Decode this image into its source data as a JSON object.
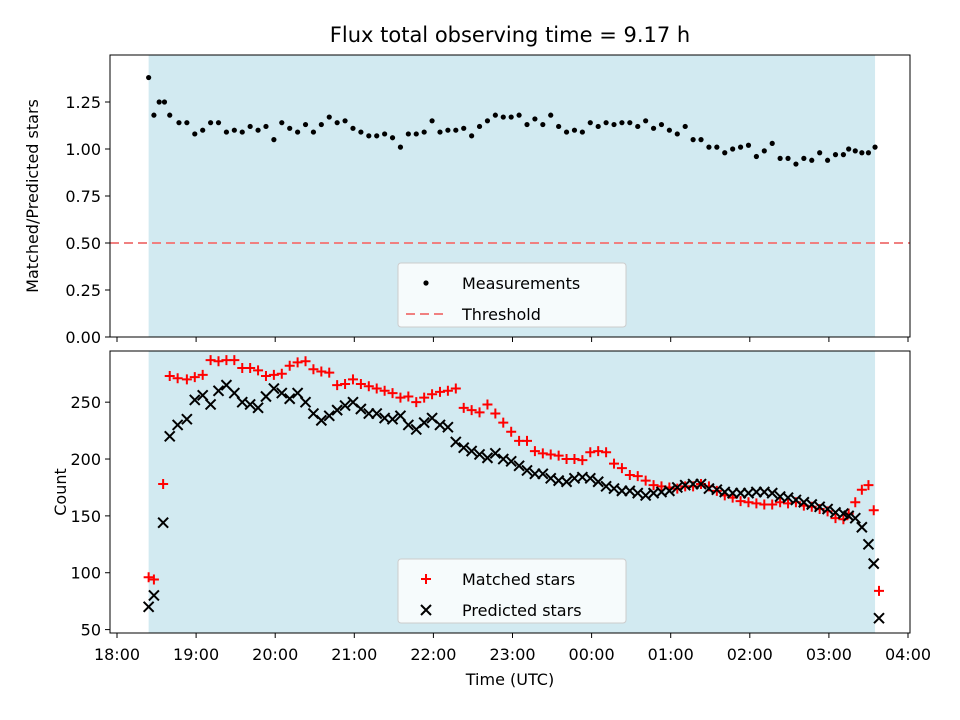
{
  "title": "Flux total observing time = 9.17 h",
  "colors": {
    "span": "#add8e6",
    "measurement": "#000000",
    "threshold": "#f08080",
    "matched": "#ff0000",
    "predicted": "#000000"
  },
  "chart_data": [
    {
      "type": "scatter",
      "panel": "top",
      "ylabel": "Matched/Predicted stars",
      "xlabel": "",
      "ylim": [
        0,
        1.5
      ],
      "yticks": [
        0.0,
        0.25,
        0.5,
        0.75,
        1.0,
        1.25
      ],
      "ytick_labels": [
        "0.00",
        "0.25",
        "0.50",
        "0.75",
        "1.00",
        "1.25"
      ],
      "shaded_span": [
        "18:24",
        "03:35"
      ],
      "legend_position": "lower center",
      "series": [
        {
          "name": "Measurements",
          "marker": "dot",
          "x": [
            "18:24",
            "18:28",
            "18:32",
            "18:36",
            "18:40",
            "18:47",
            "18:53",
            "18:59",
            "19:05",
            "19:11",
            "19:17",
            "19:23",
            "19:29",
            "19:35",
            "19:41",
            "19:47",
            "19:53",
            "19:59",
            "20:05",
            "20:11",
            "20:17",
            "20:23",
            "20:29",
            "20:35",
            "20:41",
            "20:47",
            "20:53",
            "20:59",
            "21:05",
            "21:11",
            "21:17",
            "21:23",
            "21:29",
            "21:35",
            "21:41",
            "21:47",
            "21:53",
            "21:59",
            "22:05",
            "22:11",
            "22:17",
            "22:23",
            "22:29",
            "22:35",
            "22:41",
            "22:47",
            "22:53",
            "22:59",
            "23:05",
            "23:11",
            "23:17",
            "23:23",
            "23:29",
            "23:35",
            "23:41",
            "23:47",
            "23:53",
            "23:59",
            "00:05",
            "00:11",
            "00:17",
            "00:23",
            "00:29",
            "00:35",
            "00:41",
            "00:47",
            "00:53",
            "00:59",
            "01:05",
            "01:11",
            "01:17",
            "01:23",
            "01:29",
            "01:35",
            "01:41",
            "01:47",
            "01:53",
            "01:59",
            "02:05",
            "02:11",
            "02:17",
            "02:23",
            "02:29",
            "02:35",
            "02:41",
            "02:47",
            "02:53",
            "02:59",
            "03:05",
            "03:11",
            "03:15",
            "03:20",
            "03:25",
            "03:30",
            "03:35"
          ],
          "y": [
            1.38,
            1.18,
            1.25,
            1.25,
            1.18,
            1.14,
            1.14,
            1.08,
            1.1,
            1.14,
            1.14,
            1.09,
            1.1,
            1.09,
            1.12,
            1.1,
            1.12,
            1.05,
            1.14,
            1.11,
            1.09,
            1.13,
            1.09,
            1.13,
            1.17,
            1.14,
            1.15,
            1.11,
            1.09,
            1.07,
            1.07,
            1.08,
            1.06,
            1.01,
            1.08,
            1.08,
            1.09,
            1.15,
            1.09,
            1.1,
            1.1,
            1.11,
            1.07,
            1.12,
            1.15,
            1.18,
            1.17,
            1.17,
            1.18,
            1.13,
            1.16,
            1.13,
            1.18,
            1.12,
            1.09,
            1.1,
            1.09,
            1.14,
            1.12,
            1.14,
            1.13,
            1.14,
            1.14,
            1.12,
            1.15,
            1.11,
            1.13,
            1.1,
            1.08,
            1.12,
            1.05,
            1.05,
            1.01,
            1.01,
            0.98,
            1.0,
            1.01,
            1.02,
            0.96,
            0.99,
            1.03,
            0.95,
            0.95,
            0.92,
            0.95,
            0.94,
            0.98,
            0.94,
            0.97,
            0.97,
            1.0,
            0.99,
            0.98,
            0.98,
            1.01
          ]
        },
        {
          "name": "Threshold",
          "type": "line",
          "style": "dashed",
          "y": 0.5
        }
      ]
    },
    {
      "type": "scatter",
      "panel": "bottom",
      "ylabel": "Count",
      "xlabel": "Time (UTC)",
      "ylim": [
        47,
        295
      ],
      "yticks": [
        50,
        100,
        150,
        200,
        250
      ],
      "xticks": [
        "18:00",
        "19:00",
        "20:00",
        "21:00",
        "22:00",
        "23:00",
        "00:00",
        "01:00",
        "02:00",
        "03:00",
        "04:00"
      ],
      "shaded_span": [
        "18:24",
        "03:35"
      ],
      "legend_position": "lower center",
      "series": [
        {
          "name": "Matched stars",
          "marker": "plus",
          "x": [
            "18:24",
            "18:28",
            "18:35",
            "18:40",
            "18:46",
            "18:53",
            "18:59",
            "19:05",
            "19:11",
            "19:17",
            "19:23",
            "19:29",
            "19:35",
            "19:41",
            "19:47",
            "19:53",
            "19:59",
            "20:05",
            "20:11",
            "20:17",
            "20:23",
            "20:29",
            "20:35",
            "20:41",
            "20:47",
            "20:53",
            "20:59",
            "21:05",
            "21:11",
            "21:17",
            "21:23",
            "21:29",
            "21:35",
            "21:41",
            "21:47",
            "21:53",
            "21:59",
            "22:05",
            "22:11",
            "22:17",
            "22:23",
            "22:29",
            "22:35",
            "22:41",
            "22:47",
            "22:53",
            "22:59",
            "23:05",
            "23:11",
            "23:17",
            "23:23",
            "23:29",
            "23:35",
            "23:41",
            "23:47",
            "23:53",
            "23:59",
            "00:05",
            "00:11",
            "00:17",
            "00:23",
            "00:29",
            "00:35",
            "00:41",
            "00:47",
            "00:53",
            "00:59",
            "01:05",
            "01:11",
            "01:17",
            "01:23",
            "01:29",
            "01:35",
            "01:41",
            "01:47",
            "01:53",
            "01:59",
            "02:05",
            "02:11",
            "02:17",
            "02:23",
            "02:29",
            "02:35",
            "02:41",
            "02:47",
            "02:53",
            "02:59",
            "03:05",
            "03:11",
            "03:15",
            "03:20",
            "03:25",
            "03:30",
            "03:34",
            "03:38"
          ],
          "y": [
            96,
            94,
            178,
            273,
            271,
            270,
            272,
            274,
            287,
            286,
            287,
            287,
            280,
            280,
            278,
            273,
            274,
            275,
            282,
            285,
            286,
            279,
            277,
            276,
            265,
            266,
            270,
            266,
            264,
            262,
            260,
            258,
            254,
            255,
            250,
            254,
            257,
            259,
            260,
            262,
            245,
            243,
            241,
            248,
            240,
            232,
            224,
            216,
            216,
            207,
            205,
            204,
            203,
            200,
            200,
            199,
            206,
            207,
            206,
            196,
            192,
            186,
            185,
            181,
            177,
            176,
            175,
            174,
            176,
            176,
            178,
            176,
            172,
            168,
            166,
            163,
            162,
            161,
            160,
            160,
            162,
            161,
            162,
            159,
            158,
            156,
            154,
            148,
            147,
            152,
            162,
            173,
            177,
            155,
            84
          ]
        },
        {
          "name": "Predicted stars",
          "marker": "x",
          "x": [
            "18:24",
            "18:28",
            "18:35",
            "18:40",
            "18:46",
            "18:53",
            "18:59",
            "19:05",
            "19:11",
            "19:17",
            "19:23",
            "19:29",
            "19:35",
            "19:41",
            "19:47",
            "19:53",
            "19:59",
            "20:05",
            "20:11",
            "20:17",
            "20:23",
            "20:29",
            "20:35",
            "20:41",
            "20:47",
            "20:53",
            "20:59",
            "21:05",
            "21:11",
            "21:17",
            "21:23",
            "21:29",
            "21:35",
            "21:41",
            "21:47",
            "21:53",
            "21:59",
            "22:05",
            "22:11",
            "22:17",
            "22:23",
            "22:29",
            "22:35",
            "22:41",
            "22:47",
            "22:53",
            "22:59",
            "23:05",
            "23:11",
            "23:17",
            "23:23",
            "23:29",
            "23:35",
            "23:41",
            "23:47",
            "23:53",
            "23:59",
            "00:05",
            "00:11",
            "00:17",
            "00:23",
            "00:29",
            "00:35",
            "00:41",
            "00:47",
            "00:53",
            "00:59",
            "01:05",
            "01:11",
            "01:17",
            "01:23",
            "01:29",
            "01:35",
            "01:41",
            "01:47",
            "01:53",
            "01:59",
            "02:05",
            "02:11",
            "02:17",
            "02:23",
            "02:29",
            "02:35",
            "02:41",
            "02:47",
            "02:53",
            "02:59",
            "03:05",
            "03:11",
            "03:15",
            "03:20",
            "03:25",
            "03:30",
            "03:34",
            "03:38"
          ],
          "y": [
            70,
            80,
            144,
            220,
            230,
            235,
            252,
            256,
            248,
            260,
            265,
            258,
            250,
            248,
            245,
            255,
            262,
            258,
            253,
            258,
            250,
            240,
            234,
            238,
            243,
            247,
            250,
            244,
            240,
            240,
            236,
            235,
            238,
            230,
            226,
            232,
            236,
            230,
            228,
            215,
            210,
            207,
            204,
            201,
            205,
            200,
            198,
            194,
            190,
            187,
            187,
            183,
            181,
            180,
            183,
            184,
            183,
            180,
            176,
            174,
            172,
            172,
            170,
            168,
            170,
            171,
            172,
            175,
            177,
            178,
            178,
            174,
            173,
            171,
            170,
            170,
            170,
            171,
            171,
            170,
            167,
            166,
            164,
            162,
            160,
            158,
            156,
            153,
            152,
            150,
            148,
            140,
            125,
            108,
            60
          ]
        }
      ]
    }
  ]
}
